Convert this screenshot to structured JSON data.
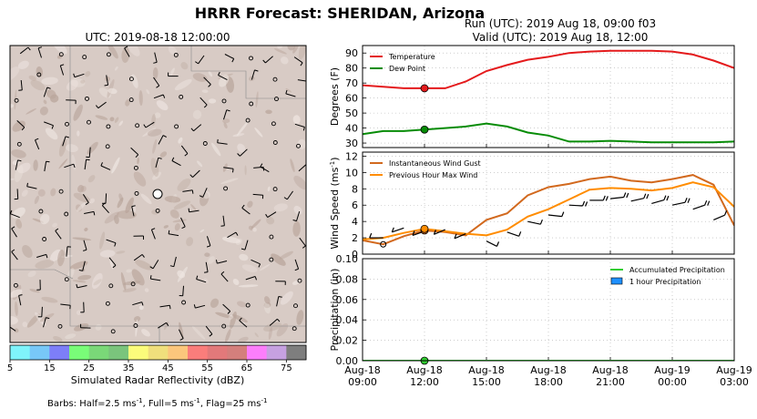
{
  "figure": {
    "title": "HRRR Forecast: SHERIDAN, Arizona",
    "run_line": "Run (UTC): 2019 Aug 18, 09:00 f03",
    "valid_line": "Valid (UTC): 2019 Aug 18, 12:00",
    "barb_note": {
      "prefix": "Barbs: Half=2.5 ms",
      "mid1": ", Full=5 ms",
      "mid2": ", Flag=25 ms",
      "sup": "-1"
    }
  },
  "map": {
    "title": "UTC: 2019-08-18 12:00:00",
    "site_marker": "open-circle",
    "terrain_color": "#d6c6bf",
    "shade_color": "#b9a59b"
  },
  "colorbar": {
    "label": "Simulated Radar Reflectivity (dBZ)",
    "ticks": [
      "5",
      "15",
      "25",
      "35",
      "45",
      "55",
      "65",
      "75"
    ],
    "colors": [
      "#7ff4fb",
      "#78c8f8",
      "#7d7ef8",
      "#79fc78",
      "#7ad878",
      "#7ac47c",
      "#fbfc7b",
      "#f0df7c",
      "#fbc67c",
      "#fa7d7b",
      "#e2797a",
      "#d47f7c",
      "#fc7efb",
      "#c6a1e1",
      "#7e7e7e"
    ]
  },
  "chart_data": [
    {
      "type": "line",
      "title": "",
      "ylabel": "Degrees (F)",
      "ylim": [
        27,
        95
      ],
      "yticks": [
        "30",
        "40",
        "50",
        "60",
        "70",
        "80",
        "90"
      ],
      "grid": true,
      "legend": "top-left",
      "x_hours": [
        0,
        1,
        2,
        3,
        4,
        5,
        6,
        7,
        8,
        9,
        10,
        11,
        12,
        13,
        14,
        15,
        16,
        17,
        18
      ],
      "series": [
        {
          "name": "Temperature",
          "color": "#e41a1c",
          "values": [
            68.5,
            67.5,
            66.5,
            66.5,
            66.5,
            71,
            78,
            82,
            85.5,
            87.5,
            90,
            91,
            91.5,
            91.5,
            91.5,
            91,
            89,
            85,
            80
          ]
        },
        {
          "name": "Dew Point",
          "color": "#078c07",
          "values": [
            36,
            38,
            38,
            39,
            40,
            41,
            43,
            41,
            37,
            35,
            31,
            31,
            31.5,
            31,
            30.5,
            30.5,
            30.5,
            30.5,
            31
          ]
        }
      ],
      "valid_marker_hour": 3
    },
    {
      "type": "line",
      "title": "",
      "ylabel": "Wind Speed (ms",
      "ylabel_sup": "-1",
      "ylim": [
        0,
        12.5
      ],
      "yticks": [
        "0",
        "2",
        "4",
        "6",
        "8",
        "10",
        "12"
      ],
      "grid": true,
      "legend": "top-left",
      "x_hours": [
        0,
        1,
        2,
        3,
        4,
        5,
        6,
        7,
        8,
        9,
        10,
        11,
        12,
        13,
        14,
        15,
        16,
        17,
        18
      ],
      "series": [
        {
          "name": "Instantaneous Wind Gust",
          "color": "#d2691e",
          "values": [
            1.7,
            1.2,
            2.2,
            2.9,
            2.7,
            2.3,
            4.2,
            5.0,
            7.2,
            8.2,
            8.6,
            9.2,
            9.5,
            9.0,
            8.8,
            9.2,
            9.7,
            8.5,
            3.5
          ]
        },
        {
          "name": "Previous Hour Max Wind",
          "color": "#ff8c00",
          "values": [
            1.8,
            2.0,
            2.6,
            3.1,
            2.8,
            2.5,
            2.3,
            3.0,
            4.6,
            5.5,
            6.7,
            7.9,
            8.1,
            8.0,
            7.8,
            8.1,
            8.8,
            8.2,
            5.8
          ]
        }
      ],
      "barbs": [
        {
          "hour": 1,
          "spd": 2.0,
          "ang": 0
        },
        {
          "hour": 2,
          "spd": 3.2,
          "ang": 30
        },
        {
          "hour": 3,
          "spd": 2.8,
          "ang": 30
        },
        {
          "hour": 4,
          "spd": 3.0,
          "ang": 35
        },
        {
          "hour": 5,
          "spd": 2.5,
          "ang": 35
        },
        {
          "hour": 6,
          "spd": 1.6,
          "ang": 140
        },
        {
          "hour": 7,
          "spd": 2.7,
          "ang": 150
        },
        {
          "hour": 8,
          "spd": 4.0,
          "ang": 160
        },
        {
          "hour": 9,
          "spd": 4.8,
          "ang": 170
        },
        {
          "hour": 10,
          "spd": 6.0,
          "ang": 175
        },
        {
          "hour": 11,
          "spd": 6.6,
          "ang": 180
        },
        {
          "hour": 12,
          "spd": 6.8,
          "ang": 190
        },
        {
          "hour": 13,
          "spd": 6.5,
          "ang": 200
        },
        {
          "hour": 14,
          "spd": 6.2,
          "ang": 205
        },
        {
          "hour": 15,
          "spd": 6.0,
          "ang": 200
        },
        {
          "hour": 16,
          "spd": 5.5,
          "ang": 210
        },
        {
          "hour": 17,
          "spd": 4.2,
          "ang": 215
        },
        {
          "hour": 18,
          "spd": 2.2,
          "ang": 220
        }
      ],
      "valid_marker_hour": 3
    },
    {
      "type": "line",
      "title": "",
      "ylabel": "Precipitation (in)",
      "ylim": [
        0,
        0.1
      ],
      "yticks": [
        "0.00",
        "0.02",
        "0.04",
        "0.06",
        "0.08",
        "0.10"
      ],
      "grid": true,
      "legend": "upper-right",
      "x_hours": [
        0,
        1,
        2,
        3,
        4,
        5,
        6,
        7,
        8,
        9,
        10,
        11,
        12,
        13,
        14,
        15,
        16,
        17,
        18
      ],
      "series": [
        {
          "name": "Accumulated Precipitation",
          "color": "#32cd32",
          "values": [
            0,
            0,
            0,
            0,
            0,
            0,
            0,
            0,
            0,
            0,
            0,
            0,
            0,
            0,
            0,
            0,
            0,
            0,
            0
          ]
        },
        {
          "name": "1 hour Precipitation",
          "color": "#1e90ff",
          "values": [
            0,
            0,
            0,
            0,
            0,
            0,
            0,
            0,
            0,
            0,
            0,
            0,
            0,
            0,
            0,
            0,
            0,
            0,
            0
          ]
        }
      ],
      "valid_marker_hour": 3
    }
  ],
  "x_axis": {
    "ticks": [
      {
        "hour": 0,
        "line1": "Aug-18",
        "line2": "09:00"
      },
      {
        "hour": 3,
        "line1": "Aug-18",
        "line2": "12:00"
      },
      {
        "hour": 6,
        "line1": "Aug-18",
        "line2": "15:00"
      },
      {
        "hour": 9,
        "line1": "Aug-18",
        "line2": "18:00"
      },
      {
        "hour": 12,
        "line1": "Aug-18",
        "line2": "21:00"
      },
      {
        "hour": 15,
        "line1": "Aug-19",
        "line2": "00:00"
      },
      {
        "hour": 18,
        "line1": "Aug-19",
        "line2": "03:00"
      }
    ],
    "range_hours": [
      0,
      18
    ]
  }
}
